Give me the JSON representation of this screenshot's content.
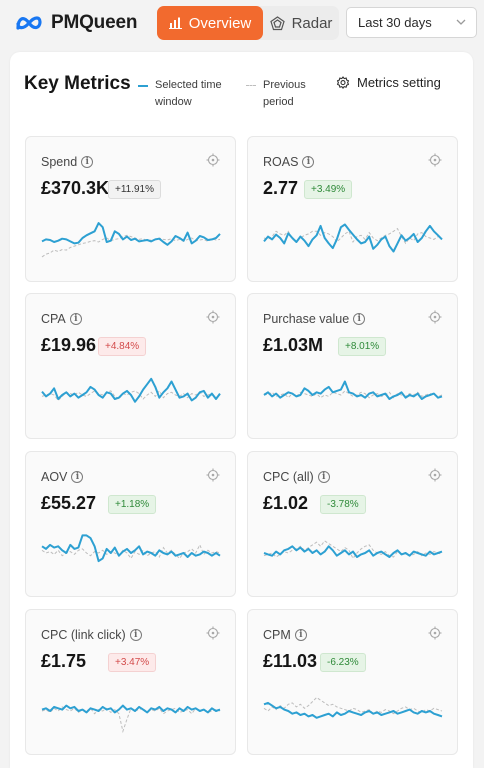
{
  "header": {
    "app_name": "PMQueen",
    "tabs": [
      {
        "label": "Overview",
        "active": true
      },
      {
        "label": "Radar",
        "active": false
      }
    ],
    "date_range": "Last 30 days"
  },
  "panel": {
    "title": "Key Metrics",
    "legend": {
      "current": "Selected time window",
      "previous": "Previous period"
    },
    "metrics_setting_label": "Metrics setting"
  },
  "colors": {
    "accent": "#f26a2e",
    "current_series": "#2da0d2",
    "previous_series": "#bdbdbd",
    "positive": "#2f8a39",
    "negative": "#d34b4b"
  },
  "cards": [
    {
      "label": "Spend",
      "value": "£370.3K",
      "change": "+11.91%",
      "tone": "neutral",
      "current": [
        45,
        42,
        43,
        46,
        44,
        41,
        42,
        45,
        48,
        47,
        40,
        36,
        33,
        30,
        18,
        24,
        46,
        44,
        30,
        34,
        42,
        38,
        43,
        41,
        45,
        44,
        43,
        45,
        42,
        41,
        46,
        50,
        45,
        37,
        40,
        44,
        32,
        48,
        44,
        37,
        39,
        43,
        42,
        40,
        34
      ],
      "previous": [
        68,
        64,
        62,
        58,
        60,
        57,
        58,
        54,
        52,
        50,
        48,
        47,
        45,
        44,
        46,
        42,
        40,
        44,
        42,
        41,
        38,
        36,
        38,
        40,
        42,
        41,
        44,
        43,
        42,
        40,
        42,
        43,
        41,
        44,
        42,
        45,
        42,
        40,
        44,
        43,
        42,
        45,
        41,
        43,
        42
      ]
    },
    {
      "label": "ROAS",
      "value": "2.77",
      "change": "+3.49%",
      "tone": "pos",
      "current": [
        45,
        38,
        42,
        35,
        40,
        48,
        33,
        40,
        46,
        38,
        44,
        52,
        42,
        36,
        22,
        40,
        48,
        55,
        42,
        24,
        20,
        28,
        35,
        42,
        48,
        46,
        38,
        56,
        50,
        42,
        38,
        52,
        60,
        48,
        36,
        44,
        40,
        34,
        46,
        40,
        30,
        22,
        30,
        36,
        42
      ],
      "previous": [
        40,
        42,
        38,
        30,
        34,
        36,
        30,
        42,
        44,
        40,
        36,
        34,
        30,
        30,
        36,
        32,
        34,
        38,
        46,
        40,
        34,
        30,
        46,
        38,
        36,
        42,
        32,
        40,
        44,
        40,
        36,
        34,
        30,
        26,
        38,
        48,
        40,
        44,
        34,
        32,
        38,
        40,
        42,
        38,
        40
      ]
    },
    {
      "label": "CPA",
      "value": "£19.96",
      "change": "+4.84%",
      "tone": "neg",
      "current": [
        35,
        42,
        38,
        30,
        46,
        40,
        36,
        42,
        38,
        44,
        40,
        36,
        28,
        32,
        40,
        44,
        36,
        38,
        46,
        44,
        38,
        34,
        40,
        50,
        42,
        32,
        24,
        16,
        28,
        44,
        36,
        30,
        20,
        32,
        44,
        42,
        38,
        48,
        44,
        36,
        34,
        44,
        38,
        46,
        38
      ],
      "previous": [
        42,
        40,
        38,
        40,
        48,
        42,
        36,
        38,
        40,
        36,
        40,
        42,
        38,
        34,
        38,
        40,
        36,
        34,
        42,
        46,
        38,
        40,
        36,
        34,
        38,
        46,
        40,
        36,
        42,
        34,
        44,
        38,
        36,
        40,
        42,
        38,
        44,
        38,
        40,
        36,
        42,
        40,
        38,
        44,
        40
      ]
    },
    {
      "label": "Purchase value",
      "value": "£1.03M",
      "change": "+8.01%",
      "tone": "pos",
      "current": [
        40,
        36,
        42,
        38,
        44,
        40,
        36,
        38,
        42,
        40,
        30,
        34,
        40,
        36,
        38,
        32,
        28,
        36,
        34,
        32,
        20,
        36,
        38,
        42,
        40,
        44,
        38,
        36,
        42,
        40,
        38,
        46,
        42,
        40,
        36,
        44,
        40,
        42,
        38,
        46,
        42,
        40,
        38,
        44,
        42
      ],
      "previous": [
        38,
        40,
        36,
        42,
        40,
        38,
        44,
        38,
        42,
        36,
        38,
        40,
        42,
        38,
        44,
        40,
        42,
        36,
        38,
        40,
        34,
        38,
        42,
        40,
        36,
        38,
        44,
        40,
        38,
        42,
        40,
        36,
        44,
        38,
        40,
        42,
        38,
        40,
        36,
        42,
        40,
        38,
        40,
        42,
        40
      ]
    },
    {
      "label": "AOV",
      "value": "£55.27",
      "change": "+1.18%",
      "tone": "pos",
      "current": [
        30,
        34,
        28,
        32,
        30,
        36,
        40,
        28,
        34,
        32,
        14,
        14,
        18,
        30,
        52,
        48,
        34,
        40,
        32,
        44,
        38,
        34,
        40,
        36,
        30,
        42,
        38,
        40,
        44,
        36,
        40,
        42,
        38,
        44,
        42,
        40,
        46,
        40,
        44,
        42,
        38,
        40,
        44,
        40,
        44
      ],
      "previous": [
        36,
        40,
        38,
        42,
        36,
        44,
        40,
        38,
        42,
        36,
        34,
        40,
        44,
        38,
        40,
        36,
        42,
        38,
        40,
        44,
        36,
        40,
        48,
        38,
        42,
        36,
        44,
        40,
        38,
        46,
        32,
        40,
        36,
        42,
        48,
        40,
        38,
        34,
        40,
        28,
        42,
        36,
        40,
        38,
        40
      ]
    },
    {
      "label": "CPC (all)",
      "value": "£1.02",
      "change": "-3.78%",
      "tone": "pos",
      "current": [
        40,
        42,
        44,
        38,
        42,
        36,
        34,
        30,
        36,
        32,
        38,
        34,
        40,
        36,
        42,
        38,
        30,
        36,
        44,
        40,
        36,
        42,
        38,
        46,
        42,
        40,
        36,
        44,
        40,
        38,
        42,
        46,
        40,
        36,
        42,
        40,
        44,
        38,
        40,
        42,
        44,
        38,
        42,
        40,
        38
      ],
      "previous": [
        44,
        42,
        40,
        46,
        42,
        38,
        40,
        36,
        34,
        30,
        36,
        32,
        28,
        24,
        30,
        22,
        26,
        30,
        34,
        38,
        32,
        36,
        48,
        40,
        34,
        30,
        28,
        36,
        40,
        42,
        38,
        44,
        46,
        38,
        42,
        40,
        44,
        42,
        38,
        44,
        40,
        42,
        38,
        40,
        42
      ]
    },
    {
      "label": "CPC (link click)",
      "value": "£1.75",
      "change": "+3.47%",
      "tone": "neg",
      "current": [
        38,
        36,
        40,
        34,
        36,
        38,
        32,
        36,
        34,
        40,
        38,
        42,
        36,
        38,
        40,
        34,
        38,
        36,
        42,
        38,
        32,
        38,
        36,
        40,
        34,
        38,
        42,
        36,
        38,
        34,
        40,
        36,
        38,
        42,
        36,
        40,
        34,
        38,
        36,
        40,
        38,
        42,
        36,
        40,
        38
      ],
      "previous": [
        40,
        38,
        42,
        36,
        40,
        34,
        38,
        40,
        36,
        42,
        38,
        40,
        36,
        44,
        38,
        40,
        36,
        42,
        38,
        44,
        70,
        52,
        36,
        40,
        38,
        36,
        42,
        38,
        40,
        36,
        44,
        40,
        38,
        36,
        42,
        40,
        38,
        44,
        36,
        40,
        38,
        42,
        40,
        38,
        40
      ]
    },
    {
      "label": "CPM",
      "value": "£11.03",
      "change": "-6.23%",
      "tone": "pos",
      "current": [
        30,
        28,
        32,
        36,
        34,
        38,
        40,
        44,
        42,
        46,
        44,
        48,
        46,
        50,
        48,
        46,
        44,
        48,
        42,
        46,
        44,
        40,
        42,
        44,
        46,
        42,
        40,
        44,
        42,
        46,
        44,
        42,
        40,
        44,
        42,
        40,
        38,
        42,
        44,
        40,
        42,
        40,
        44,
        46,
        48
      ],
      "previous": [
        36,
        40,
        34,
        38,
        32,
        36,
        30,
        28,
        34,
        30,
        36,
        32,
        26,
        20,
        24,
        28,
        32,
        30,
        34,
        36,
        38,
        40,
        36,
        38,
        42,
        40,
        38,
        44,
        40,
        42,
        38,
        40,
        44,
        40,
        36,
        34,
        38,
        36,
        40,
        42,
        38,
        40,
        36,
        38,
        40
      ]
    }
  ]
}
